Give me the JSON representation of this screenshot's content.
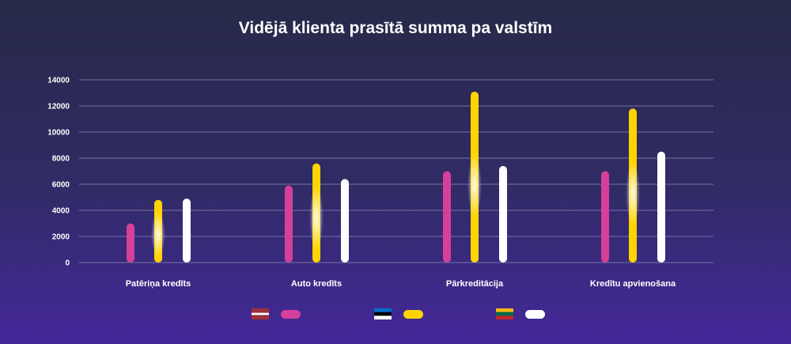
{
  "chart_data": {
    "type": "bar",
    "title": "Vidējā klienta prasītā summa pa valstīm",
    "xlabel": "",
    "ylabel": "",
    "ylim": [
      0,
      14000
    ],
    "yticks": [
      0,
      2000,
      4000,
      6000,
      8000,
      10000,
      12000,
      14000
    ],
    "grid": true,
    "legend_position": "bottom",
    "categories": [
      "Patēriņa kredīts",
      "Auto kredīts",
      "Pārkreditācija",
      "Kredītu apvienošana"
    ],
    "series": [
      {
        "flag": "latvia-flag-icon",
        "color": "#d6409a",
        "values": [
          3000,
          5900,
          7000,
          7000
        ]
      },
      {
        "flag": "estonia-flag-icon",
        "color": "#ffd400",
        "values": [
          4800,
          7600,
          13100,
          11800
        ]
      },
      {
        "flag": "lithuania-flag-icon",
        "color": "#ffffff",
        "values": [
          4900,
          6400,
          7400,
          8500
        ]
      }
    ]
  }
}
